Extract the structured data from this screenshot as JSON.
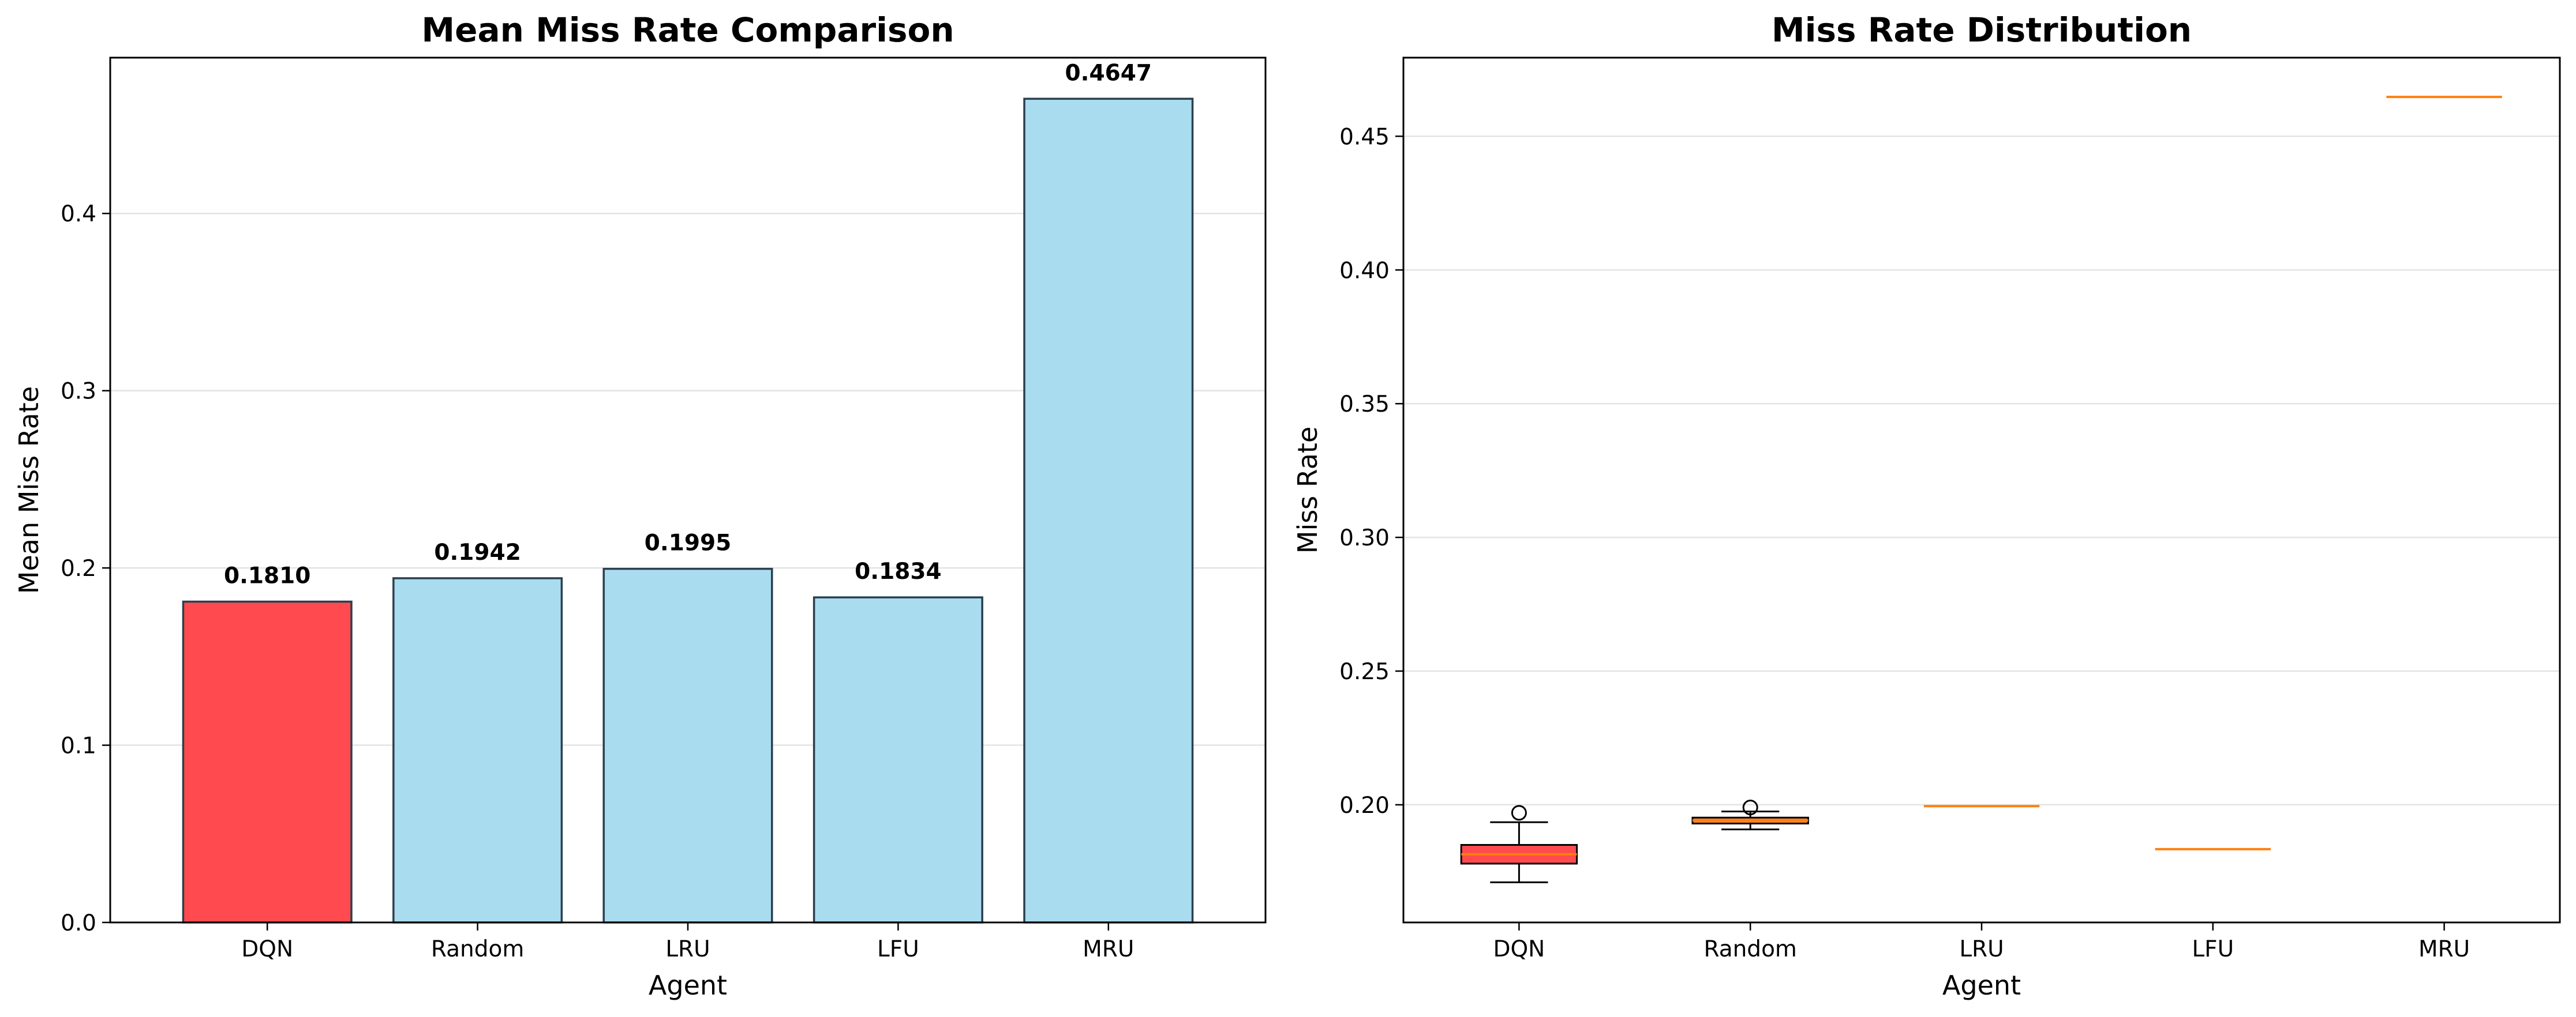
{
  "chart_data": [
    {
      "type": "bar",
      "title": "Mean Miss Rate Comparison",
      "xlabel": "Agent",
      "ylabel": "Mean Miss Rate",
      "categories": [
        "DQN",
        "Random",
        "LRU",
        "LFU",
        "MRU"
      ],
      "values": [
        0.181,
        0.1942,
        0.1995,
        0.1834,
        0.4647
      ],
      "value_labels": [
        "0.1810",
        "0.1942",
        "0.1995",
        "0.1834",
        "0.4647"
      ],
      "bar_colors": [
        "#ff4b4f",
        "#aadcef",
        "#aadcef",
        "#aadcef",
        "#aadcef"
      ],
      "ylim": [
        0,
        0.4879
      ],
      "yticks": [
        0.0,
        0.1,
        0.2,
        0.3,
        0.4
      ],
      "ytick_labels": [
        "0.0",
        "0.1",
        "0.2",
        "0.3",
        "0.4"
      ],
      "grid": "y"
    },
    {
      "type": "box",
      "title": "Miss Rate Distribution",
      "xlabel": "Agent",
      "ylabel": "Miss Rate",
      "categories": [
        "DQN",
        "Random",
        "LRU",
        "LFU",
        "MRU"
      ],
      "boxes": [
        {
          "whisker_low": 0.171,
          "q1": 0.178,
          "median": 0.1815,
          "q3": 0.185,
          "whisker_high": 0.1935,
          "outliers": [
            0.197
          ],
          "fill": "#ff4b4f"
        },
        {
          "whisker_low": 0.1908,
          "q1": 0.193,
          "median": 0.1942,
          "q3": 0.1952,
          "whisker_high": 0.1975,
          "outliers": [
            0.199
          ],
          "fill": "#ff8c3a"
        },
        {
          "whisker_low": 0.1995,
          "q1": 0.1995,
          "median": 0.1995,
          "q3": 0.1995,
          "whisker_high": 0.1995,
          "outliers": [],
          "fill": "#ff8c3a"
        },
        {
          "whisker_low": 0.1834,
          "q1": 0.1834,
          "median": 0.1834,
          "q3": 0.1834,
          "whisker_high": 0.1834,
          "outliers": [],
          "fill": "#ff8c3a"
        },
        {
          "whisker_low": 0.4647,
          "q1": 0.4647,
          "median": 0.4647,
          "q3": 0.4647,
          "whisker_high": 0.4647,
          "outliers": [],
          "fill": "#ff8c3a"
        }
      ],
      "median_color": "#ff7f0e",
      "ylim": [
        0.156,
        0.4794
      ],
      "yticks": [
        0.2,
        0.25,
        0.3,
        0.35,
        0.4,
        0.45
      ],
      "ytick_labels": [
        "0.20",
        "0.25",
        "0.30",
        "0.35",
        "0.40",
        "0.45"
      ],
      "grid": "y"
    }
  ]
}
